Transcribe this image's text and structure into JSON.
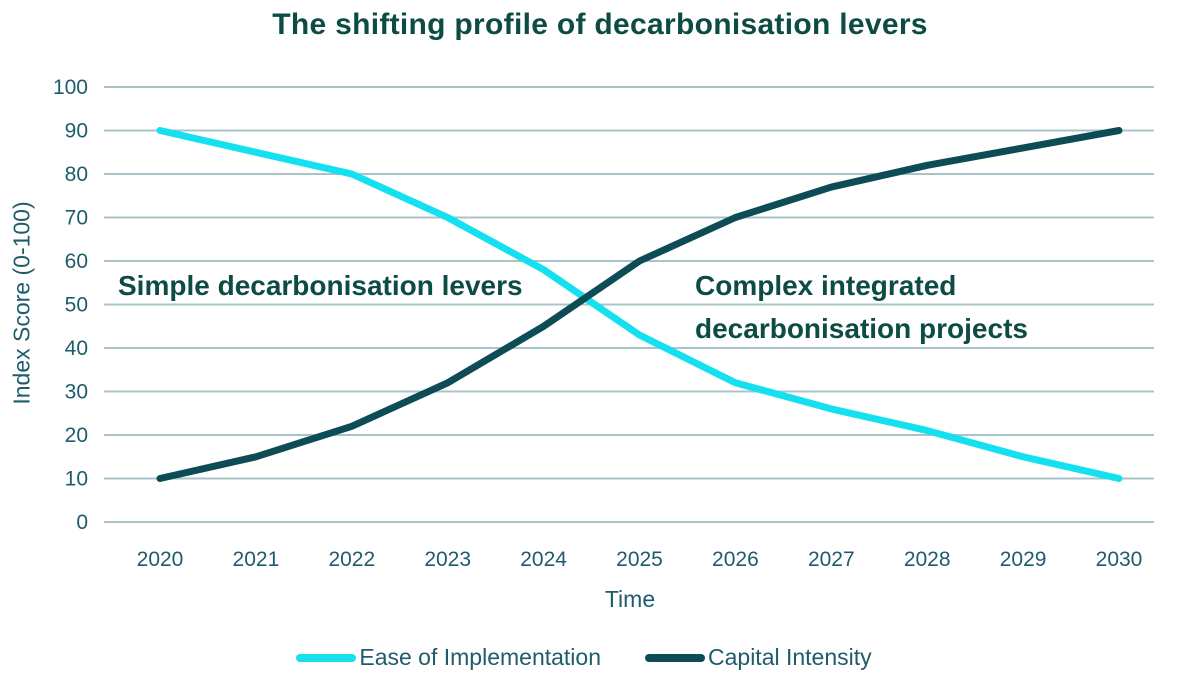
{
  "title": "The shifting profile of decarbonisation levers",
  "axes": {
    "x_title": "Time",
    "y_title": "Index Score (0-100)"
  },
  "annotations": {
    "left": "Simple decarbonisation levers",
    "right": "Complex integrated decarbonisation projects"
  },
  "legend": {
    "items": [
      {
        "label": "Ease of Implementation",
        "color": "#15e0f0"
      },
      {
        "label": "Capital Intensity",
        "color": "#0e4c55"
      }
    ]
  },
  "colors": {
    "heading_text": "#0d4c45",
    "axis_text": "#1e5c6b",
    "gridline": "#a9c4c8",
    "ease_line": "#15e0f0",
    "capital_line": "#0e4c55"
  },
  "chart_data": {
    "type": "line",
    "title": "The shifting profile of decarbonisation levers",
    "x": [
      2020,
      2021,
      2022,
      2023,
      2024,
      2025,
      2026,
      2027,
      2028,
      2029,
      2030
    ],
    "series": [
      {
        "name": "Ease of Implementation",
        "color": "#15e0f0",
        "values": [
          90,
          85,
          80,
          70,
          58,
          43,
          32,
          26,
          21,
          15,
          10
        ]
      },
      {
        "name": "Capital Intensity",
        "color": "#0e4c55",
        "values": [
          10,
          15,
          22,
          32,
          45,
          60,
          70,
          77,
          82,
          86,
          90
        ]
      }
    ],
    "xlabel": "Time",
    "ylabel": "Index Score (0-100)",
    "ylim": [
      0,
      100
    ],
    "ytick_step": 10,
    "grid": "horizontal-only",
    "legend_position": "bottom",
    "annotations": [
      "Simple decarbonisation levers",
      "Complex integrated decarbonisation projects"
    ]
  }
}
